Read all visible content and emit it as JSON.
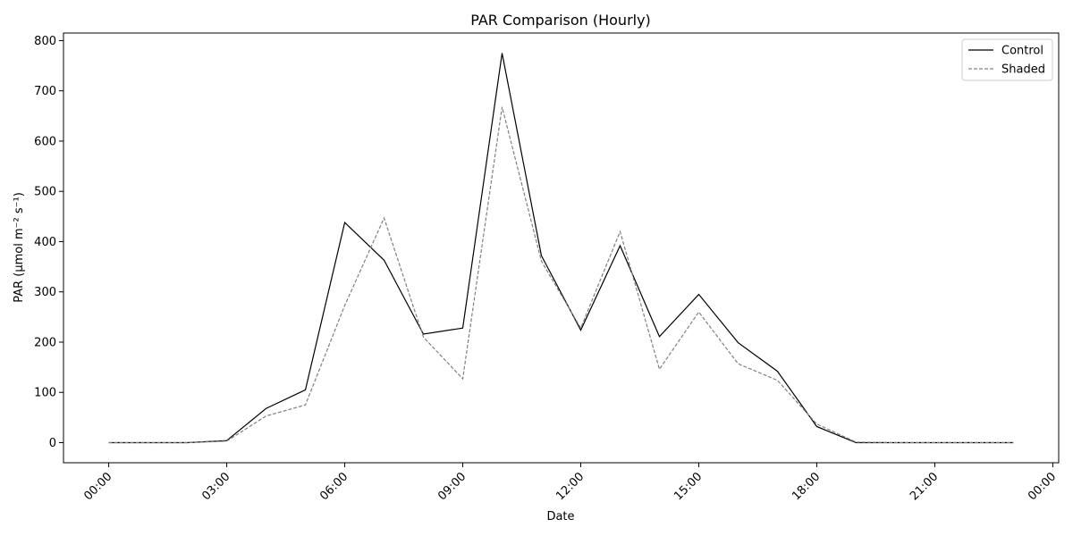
{
  "chart_data": {
    "type": "line",
    "title": "PAR Comparison (Hourly)",
    "xlabel": "Date",
    "ylabel": "PAR (µmol m⁻² s⁻¹)",
    "x_tick_labels": [
      "00:00",
      "03:00",
      "06:00",
      "09:00",
      "12:00",
      "15:00",
      "18:00",
      "21:00",
      "00:00"
    ],
    "x_tick_hours": [
      0,
      3,
      6,
      9,
      12,
      15,
      18,
      21,
      24
    ],
    "xlim": [
      -1.15,
      24.15
    ],
    "ylim": [
      -40,
      815
    ],
    "y_ticks": [
      0,
      100,
      200,
      300,
      400,
      500,
      600,
      700,
      800
    ],
    "x": [
      0,
      1,
      2,
      3,
      4,
      5,
      6,
      7,
      8,
      9,
      10,
      11,
      12,
      13,
      14,
      15,
      16,
      17,
      18,
      19,
      20,
      21,
      22,
      23
    ],
    "series": [
      {
        "name": "Control",
        "color": "#000000",
        "style": "solid",
        "values": [
          0,
          0,
          0,
          4,
          68,
          105,
          438,
          363,
          216,
          228,
          775,
          372,
          224,
          392,
          211,
          295,
          199,
          142,
          32,
          0,
          0,
          0,
          0,
          0
        ]
      },
      {
        "name": "Shaded",
        "color": "#808080",
        "style": "dashed",
        "values": [
          0,
          0,
          0,
          3,
          53,
          75,
          273,
          447,
          210,
          127,
          668,
          361,
          228,
          420,
          146,
          260,
          157,
          124,
          37,
          1,
          0,
          0,
          0,
          0
        ]
      }
    ],
    "grid": false,
    "legend_position": "top-right"
  }
}
